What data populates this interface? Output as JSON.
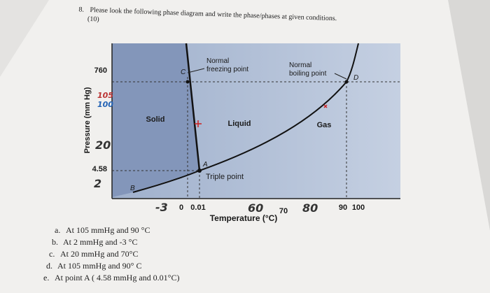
{
  "question": {
    "number": "8.",
    "text": "Please look the following phase diagram and write the phase/phases at given conditions.",
    "points": "(10)"
  },
  "diagram": {
    "y_axis_label": "Pressure (mm Hg)",
    "x_axis_label": "Temperature (°C)",
    "y_labels": [
      "760",
      "4.58"
    ],
    "x_labels": [
      "0",
      "0.01",
      "70",
      "90",
      "100"
    ],
    "regions": [
      "Solid",
      "Liquid",
      "Gas"
    ],
    "freezing_label": [
      "Normal",
      "freezing point"
    ],
    "boiling_label": [
      "Normal",
      "boiling point"
    ],
    "triple_point": "Triple point",
    "points": [
      "A",
      "B",
      "C",
      "D"
    ],
    "handwritten": [
      "105",
      "100",
      "20",
      "2",
      "-3",
      "60",
      "80"
    ]
  },
  "items": [
    {
      "letter": "a.",
      "text": "At 105 mmHg and 90 °C"
    },
    {
      "letter": "b.",
      "text": "At 2 mmHg and -3 °C"
    },
    {
      "letter": "c.",
      "text": "At 20 mmHg and 70°C"
    },
    {
      "letter": "d.",
      "text": "At 105 mmHg and 90° C"
    },
    {
      "letter": "e.",
      "text": "At point A ( 4.58 mmHg and 0.01°C)"
    }
  ]
}
